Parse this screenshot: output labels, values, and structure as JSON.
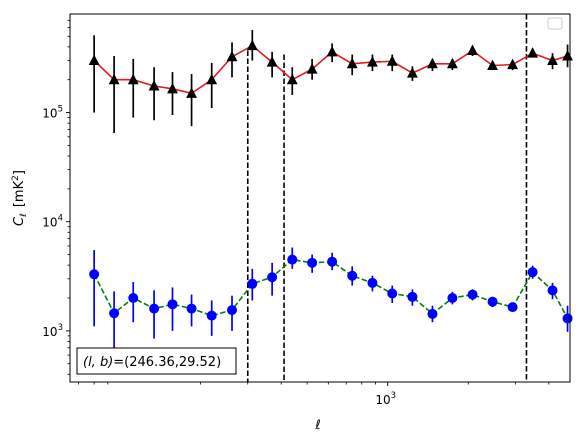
{
  "chart_data": {
    "type": "line",
    "title": "",
    "xlabel": "ℓ",
    "ylabel": "C_ℓ  [mK²]",
    "ylabel_parts": {
      "symbol": "C",
      "sub": "ℓ",
      "unit_open": "[mK",
      "unit_sup": "2",
      "unit_close": "]"
    },
    "x_scale": "log",
    "y_scale": "log",
    "xlim": [
      65,
      4800
    ],
    "ylim": [
      340,
      800000
    ],
    "xticks": [
      {
        "value": 1000,
        "label_base": "10",
        "label_exp": "3"
      }
    ],
    "yticks": [
      {
        "value": 1000,
        "label_base": "10",
        "label_exp": "3"
      },
      {
        "value": 10000,
        "label_base": "10",
        "label_exp": "4"
      },
      {
        "value": 100000,
        "label_base": "10",
        "label_exp": "5"
      }
    ],
    "grid": false,
    "legend": {
      "position": "top-right",
      "entries": []
    },
    "annotation": {
      "text": "(l, b)=(246.36,29.52)",
      "prefix": "(l, b)",
      "value": "=(246.36,29.52)"
    },
    "vlines": [
      {
        "x": 300,
        "y_top": 370000,
        "y_bottom": 340
      },
      {
        "x": 410,
        "y_top": 340000,
        "y_bottom": 340
      },
      {
        "x": 3300,
        "y_top": 800000,
        "y_bottom": 340
      }
    ],
    "series": [
      {
        "style": {
          "line": "#e41a1c",
          "dash": "solid",
          "marker": "triangle",
          "marker_color": "#000000",
          "err_color": "#000000"
        },
        "points": [
          {
            "x": 80,
            "y": 300000,
            "lo": 100000,
            "hi": 510000
          },
          {
            "x": 95,
            "y": 200000,
            "lo": 65000,
            "hi": 330000
          },
          {
            "x": 112,
            "y": 200000,
            "lo": 90000,
            "hi": 310000
          },
          {
            "x": 134,
            "y": 175000,
            "lo": 85000,
            "hi": 260000
          },
          {
            "x": 157,
            "y": 165000,
            "lo": 95000,
            "hi": 235000
          },
          {
            "x": 185,
            "y": 150000,
            "lo": 75000,
            "hi": 225000
          },
          {
            "x": 220,
            "y": 200000,
            "lo": 110000,
            "hi": 285000
          },
          {
            "x": 262,
            "y": 325000,
            "lo": 210000,
            "hi": 440000
          },
          {
            "x": 312,
            "y": 410000,
            "lo": 300000,
            "hi": 570000
          },
          {
            "x": 370,
            "y": 290000,
            "lo": 210000,
            "hi": 360000
          },
          {
            "x": 440,
            "y": 200000,
            "lo": 145000,
            "hi": 260000
          },
          {
            "x": 522,
            "y": 250000,
            "lo": 200000,
            "hi": 310000
          },
          {
            "x": 620,
            "y": 360000,
            "lo": 290000,
            "hi": 430000
          },
          {
            "x": 737,
            "y": 280000,
            "lo": 220000,
            "hi": 340000
          },
          {
            "x": 877,
            "y": 290000,
            "lo": 240000,
            "hi": 340000
          },
          {
            "x": 1040,
            "y": 295000,
            "lo": 240000,
            "hi": 340000
          },
          {
            "x": 1237,
            "y": 230000,
            "lo": 195000,
            "hi": 265000
          },
          {
            "x": 1470,
            "y": 280000,
            "lo": 240000,
            "hi": 310000
          },
          {
            "x": 1745,
            "y": 280000,
            "lo": 245000,
            "hi": 310000
          },
          {
            "x": 2075,
            "y": 370000,
            "lo": 330000,
            "hi": 410000
          },
          {
            "x": 2465,
            "y": 270000,
            "lo": 245000,
            "hi": 290000
          },
          {
            "x": 2930,
            "y": 275000,
            "lo": 245000,
            "hi": 300000
          },
          {
            "x": 3480,
            "y": 350000,
            "lo": 320000,
            "hi": 385000
          },
          {
            "x": 4130,
            "y": 300000,
            "lo": 250000,
            "hi": 350000
          },
          {
            "x": 4700,
            "y": 330000,
            "lo": 260000,
            "hi": 420000
          }
        ]
      },
      {
        "style": {
          "line": "#008000",
          "dash": "dashed",
          "marker": "circle",
          "marker_color": "#0000ff",
          "err_color": "#0000ff"
        },
        "points": [
          {
            "x": 80,
            "y": 3300,
            "lo": 1100,
            "hi": 5500
          },
          {
            "x": 95,
            "y": 1450,
            "lo": 600,
            "hi": 2300
          },
          {
            "x": 112,
            "y": 2000,
            "lo": 1200,
            "hi": 2800
          },
          {
            "x": 134,
            "y": 1600,
            "lo": 850,
            "hi": 2350
          },
          {
            "x": 157,
            "y": 1750,
            "lo": 1000,
            "hi": 2500
          },
          {
            "x": 185,
            "y": 1600,
            "lo": 1100,
            "hi": 2150
          },
          {
            "x": 220,
            "y": 1380,
            "lo": 900,
            "hi": 1900
          },
          {
            "x": 262,
            "y": 1550,
            "lo": 1000,
            "hi": 2100
          },
          {
            "x": 312,
            "y": 2700,
            "lo": 1900,
            "hi": 3700
          },
          {
            "x": 370,
            "y": 3100,
            "lo": 2100,
            "hi": 4200
          },
          {
            "x": 440,
            "y": 4500,
            "lo": 3700,
            "hi": 5800
          },
          {
            "x": 522,
            "y": 4200,
            "lo": 3400,
            "hi": 5000
          },
          {
            "x": 620,
            "y": 4300,
            "lo": 3600,
            "hi": 5200
          },
          {
            "x": 737,
            "y": 3200,
            "lo": 2600,
            "hi": 3900
          },
          {
            "x": 877,
            "y": 2750,
            "lo": 2300,
            "hi": 3200
          },
          {
            "x": 1040,
            "y": 2200,
            "lo": 1800,
            "hi": 2600
          },
          {
            "x": 1237,
            "y": 2050,
            "lo": 1700,
            "hi": 2400
          },
          {
            "x": 1470,
            "y": 1430,
            "lo": 1200,
            "hi": 1700
          },
          {
            "x": 1745,
            "y": 2000,
            "lo": 1750,
            "hi": 2280
          },
          {
            "x": 2075,
            "y": 2150,
            "lo": 1900,
            "hi": 2400
          },
          {
            "x": 2465,
            "y": 1850,
            "lo": 1650,
            "hi": 2050
          },
          {
            "x": 2930,
            "y": 1650,
            "lo": 1500,
            "hi": 1800
          },
          {
            "x": 3480,
            "y": 3450,
            "lo": 3000,
            "hi": 3950
          },
          {
            "x": 4130,
            "y": 2350,
            "lo": 1950,
            "hi": 2750
          },
          {
            "x": 4700,
            "y": 1300,
            "lo": 980,
            "hi": 1700
          }
        ]
      }
    ]
  }
}
